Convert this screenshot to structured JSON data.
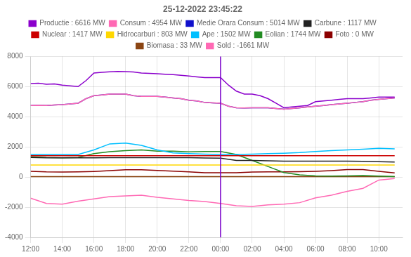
{
  "chart_data": {
    "type": "line",
    "title": "25-12-2022 23:45:22",
    "xlim": [
      -12,
      11.5
    ],
    "ylim": [
      -4000,
      8000
    ],
    "yticks": [
      -4000,
      -2000,
      0,
      2000,
      4000,
      6000,
      8000
    ],
    "xticks": [
      {
        "value": -12,
        "label": "12:00"
      },
      {
        "value": -10,
        "label": "14:00"
      },
      {
        "value": -8,
        "label": "16:00"
      },
      {
        "value": -6,
        "label": "18:00"
      },
      {
        "value": -4,
        "label": "20:00"
      },
      {
        "value": -2,
        "label": "22:00"
      },
      {
        "value": 0,
        "label": "00:00"
      },
      {
        "value": 2,
        "label": "02:00"
      },
      {
        "value": 4,
        "label": "04:00"
      },
      {
        "value": 6,
        "label": "06:00"
      },
      {
        "value": 8,
        "label": "08:00"
      },
      {
        "value": 10,
        "label": "10:00"
      }
    ],
    "grid": true,
    "legend": "top",
    "marker": "none",
    "annotations": [
      {
        "type": "vline",
        "x": 0,
        "color": "#7B00CC"
      }
    ],
    "series": [
      {
        "name": "Productie : 6616 MW",
        "color": "#8B00CC",
        "x": [
          -12,
          -11.5,
          -11,
          -10.5,
          -10,
          -9.5,
          -9,
          -8.5,
          -8,
          -7.5,
          -7,
          -6.5,
          -6,
          -5.5,
          -5,
          -4.5,
          -4,
          -3.5,
          -3,
          -2.5,
          -2,
          -1.5,
          -1,
          -0.5,
          0,
          0.5,
          1,
          1.5,
          2,
          2.5,
          3,
          3.5,
          4,
          4.5,
          5,
          5.5,
          6,
          6.5,
          7,
          7.5,
          8,
          8.5,
          9,
          9.5,
          10,
          10.5,
          11
        ],
        "values": [
          6200,
          6220,
          6150,
          6180,
          6100,
          6050,
          6000,
          6400,
          6900,
          6950,
          6980,
          7000,
          6990,
          6970,
          6900,
          6880,
          6850,
          6820,
          6800,
          6750,
          6700,
          6650,
          6600,
          6600,
          6600,
          6100,
          5700,
          5500,
          5500,
          5400,
          5200,
          4900,
          4600,
          4650,
          4700,
          4750,
          5000,
          5050,
          5100,
          5150,
          5200,
          5200,
          5200,
          5250,
          5300,
          5300,
          5300
        ]
      },
      {
        "name": "Consum : 4954 MW",
        "color": "#FF69B4",
        "x": [
          -12,
          -11.5,
          -11,
          -10.5,
          -10,
          -9.5,
          -9,
          -8.5,
          -8,
          -7.5,
          -7,
          -6.5,
          -6,
          -5.5,
          -5,
          -4.5,
          -4,
          -3.5,
          -3,
          -2.5,
          -2,
          -1.5,
          -1,
          -0.5,
          0,
          0.5,
          1,
          1.5,
          2,
          2.5,
          3,
          3.5,
          4,
          4.5,
          5,
          5.5,
          6,
          6.5,
          7,
          7.5,
          8,
          8.5,
          9,
          9.5,
          10,
          10.5,
          11
        ],
        "values": [
          4750,
          4760,
          4750,
          4780,
          4800,
          4850,
          4900,
          5200,
          5400,
          5450,
          5500,
          5500,
          5500,
          5400,
          5350,
          5350,
          5350,
          5300,
          5250,
          5200,
          5100,
          5050,
          4950,
          4920,
          4900,
          4700,
          4600,
          4580,
          4600,
          4600,
          4600,
          4550,
          4500,
          4550,
          4600,
          4650,
          4700,
          4750,
          4800,
          4850,
          4900,
          4950,
          5000,
          5100,
          5150,
          5200,
          5250
        ]
      },
      {
        "name": "Medie Orara Consum : 5014 MW",
        "color": "#1010CC",
        "x": [
          -12,
          -11.5,
          -11,
          -10.5,
          -10,
          -9.5,
          -9,
          -8.5,
          -8,
          -7.5,
          -7,
          -6.5,
          -6,
          -5.5,
          -5,
          -4.5,
          -4,
          -3.5,
          -3,
          -2.5,
          -2,
          -1.5,
          -1,
          -0.5,
          0,
          0.5,
          1,
          1.5,
          2,
          2.5,
          3,
          3.5,
          4,
          4.5,
          5,
          5.5,
          6,
          6.5,
          7,
          7.5,
          8,
          8.5,
          9,
          9.5,
          10,
          10.5,
          11
        ],
        "values": [
          4750,
          4760,
          4750,
          4780,
          4800,
          4850,
          4900,
          5200,
          5400,
          5450,
          5500,
          5500,
          5500,
          5400,
          5350,
          5350,
          5350,
          5300,
          5250,
          5200,
          5100,
          5050,
          4950,
          4920,
          4900,
          4700,
          4600,
          4580,
          4600,
          4600,
          4600,
          4550,
          4500,
          4550,
          4600,
          4650,
          4700,
          4750,
          4800,
          4850,
          4900,
          4950,
          5000,
          5100,
          5150,
          5200,
          5250
        ]
      },
      {
        "name": "Carbune : 1117 MW",
        "color": "#222222",
        "x": [
          -12,
          -11,
          -10,
          -9,
          -8,
          -7,
          -6,
          -5,
          -4,
          -3,
          -2,
          -1,
          0,
          1,
          2,
          3,
          4,
          5,
          6,
          7,
          8,
          9,
          10,
          11
        ],
        "values": [
          1300,
          1280,
          1270,
          1270,
          1280,
          1290,
          1290,
          1290,
          1290,
          1290,
          1290,
          1260,
          1250,
          1100,
          1100,
          1080,
          1060,
          1050,
          1050,
          1050,
          1050,
          1040,
          1020,
          1000
        ]
      },
      {
        "name": "Nuclear : 1417 MW",
        "color": "#CC0000",
        "x": [
          -12,
          11
        ],
        "values": [
          1415,
          1415
        ]
      },
      {
        "name": "Hidrocarburi : 803 MW",
        "color": "#FFD700",
        "x": [
          -12,
          11
        ],
        "values": [
          800,
          800
        ]
      },
      {
        "name": "Ape : 1502 MW",
        "color": "#00BFFF",
        "x": [
          -12,
          -11,
          -10,
          -9,
          -8,
          -7,
          -6,
          -5,
          -4,
          -3,
          -2,
          -1,
          0,
          1,
          2,
          3,
          4,
          5,
          6,
          7,
          8,
          9,
          10,
          11
        ],
        "values": [
          1500,
          1500,
          1500,
          1500,
          1800,
          2200,
          2250,
          2100,
          1800,
          1600,
          1550,
          1520,
          1500,
          1500,
          1520,
          1550,
          1580,
          1620,
          1700,
          1750,
          1800,
          1850,
          1900,
          1870
        ]
      },
      {
        "name": "Eolian : 1744 MW",
        "color": "#228B22",
        "x": [
          -12,
          -11,
          -10,
          -9,
          -8,
          -7,
          -6,
          -5,
          -4,
          -3,
          -2,
          -1,
          0,
          1,
          2,
          3,
          4,
          5,
          6,
          7,
          8,
          9,
          10,
          11
        ],
        "values": [
          1350,
          1300,
          1280,
          1300,
          1550,
          1680,
          1750,
          1800,
          1720,
          1720,
          1670,
          1700,
          1700,
          1500,
          1100,
          700,
          300,
          150,
          80,
          60,
          80,
          100,
          60,
          30
        ]
      },
      {
        "name": "Foto : 0 MW",
        "color": "#8B0000",
        "x": [
          -12,
          -11,
          -10,
          -9,
          -8,
          -7,
          -6,
          -5,
          -4,
          -3,
          -2,
          -1,
          0,
          1,
          2,
          3,
          4,
          5,
          6,
          7,
          8,
          9,
          10,
          11
        ],
        "values": [
          380,
          340,
          330,
          340,
          370,
          420,
          480,
          480,
          440,
          390,
          340,
          290,
          280,
          290,
          330,
          340,
          340,
          350,
          380,
          430,
          490,
          490,
          380,
          270
        ]
      },
      {
        "name": "Biomasa : 33 MW",
        "color": "#8B4513",
        "x": [
          -12,
          11
        ],
        "values": [
          30,
          30
        ]
      },
      {
        "name": "Sold : -1661 MW",
        "color": "#FF69B4",
        "x": [
          -12,
          -11,
          -10,
          -9,
          -8,
          -7,
          -6,
          -5,
          -4,
          -3,
          -2,
          -1,
          0,
          1,
          2,
          3,
          4,
          5,
          6,
          7,
          8,
          9,
          10,
          11
        ],
        "values": [
          -1400,
          -1750,
          -1800,
          -1600,
          -1450,
          -1300,
          -1250,
          -1200,
          -1350,
          -1450,
          -1550,
          -1620,
          -1750,
          -1900,
          -1950,
          -1850,
          -1800,
          -1700,
          -1380,
          -1200,
          -950,
          -750,
          -200,
          -100
        ]
      }
    ]
  }
}
